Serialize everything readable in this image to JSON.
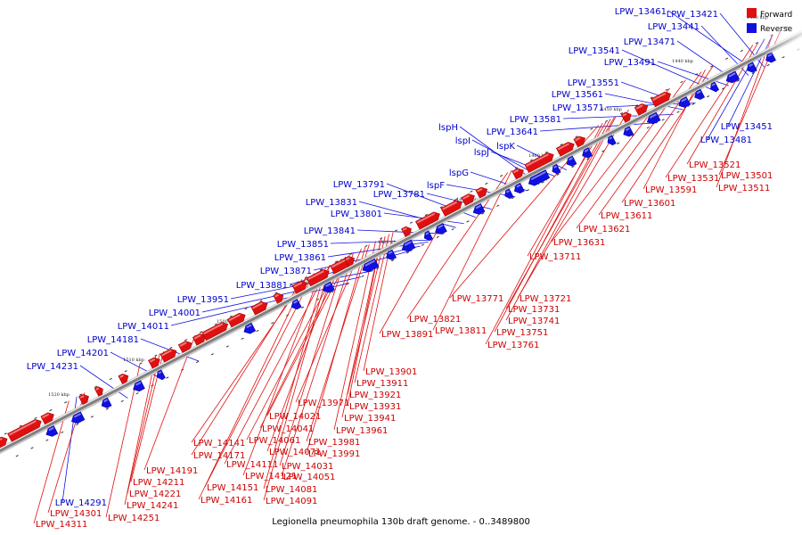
{
  "caption": "Legionella pneumophila 130b draft genome. - 0..3489800",
  "legend": [
    {
      "label": "Forward",
      "color": "#e01010"
    },
    {
      "label": "Reverse",
      "color": "#1010e0"
    }
  ],
  "colors": {
    "forward": "#e01010",
    "reverse": "#1010e0",
    "forward_label": "#cc0000",
    "reverse_label": "#0000cc",
    "backbone": "#808080"
  },
  "ticks": [
    {
      "kbp": 1430,
      "label": "1430 kbp"
    },
    {
      "kbp": 1440,
      "label": "1440 kbp"
    },
    {
      "kbp": 1450,
      "label": "1450 kbp"
    },
    {
      "kbp": 1460,
      "label": "1460 kbp"
    },
    {
      "kbp": 1470,
      "label": "1470 kbp"
    },
    {
      "kbp": 1480,
      "label": "1480 kbp"
    },
    {
      "kbp": 1490,
      "label": "1490 kbp"
    },
    {
      "kbp": 1500,
      "label": "1500 kbp"
    },
    {
      "kbp": 1510,
      "label": "1510 kbp"
    },
    {
      "kbp": 1520,
      "label": "1520 kbp"
    }
  ],
  "reverse_genes": [
    "LPW_13461",
    "LPW_13421",
    "LPW_13441",
    "LPW_13471",
    "LPW_13541",
    "LPW_13491",
    "LPW_13551",
    "LPW_13561",
    "LPW_13571",
    "LPW_13581",
    "LPW_13641",
    "lspH",
    "lspI",
    "lspJ",
    "lspK",
    "lspG",
    "lspF",
    "LPW_13791",
    "LPW_13781",
    "LPW_13831",
    "LPW_13801",
    "LPW_13841",
    "LPW_13851",
    "LPW_13861",
    "LPW_13871",
    "LPW_13881",
    "LPW_13951",
    "LPW_14001",
    "LPW_14011",
    "LPW_14181",
    "LPW_14201",
    "LPW_14231",
    "LPW_13451",
    "LPW_13481",
    "LPW_14291"
  ],
  "forward_genes": [
    "LPW_13521",
    "LPW_13501",
    "LPW_13531",
    "LPW_13511",
    "LPW_13591",
    "LPW_13601",
    "LPW_13611",
    "LPW_13621",
    "LPW_13631",
    "LPW_13711",
    "LPW_13721",
    "LPW_13771",
    "LPW_13731",
    "LPW_13741",
    "LPW_13821",
    "LPW_13751",
    "LPW_13811",
    "LPW_13891",
    "LPW_13761",
    "LPW_13901",
    "LPW_13911",
    "LPW_13921",
    "LPW_13931",
    "LPW_13971",
    "LPW_13941",
    "LPW_14021",
    "LPW_13961",
    "LPW_14041",
    "LPW_13981",
    "LPW_14061",
    "LPW_14141",
    "LPW_14071",
    "LPW_13991",
    "LPW_14171",
    "LPW_14111",
    "LPW_14031",
    "LPW_14051",
    "LPW_14121",
    "LPW_14191",
    "LPW_14211",
    "LPW_14151",
    "LPW_14081",
    "LPW_14091",
    "LPW_14161",
    "LPW_14221",
    "LPW_14241",
    "LPW_14301",
    "LPW_14251",
    "LPW_14311"
  ]
}
